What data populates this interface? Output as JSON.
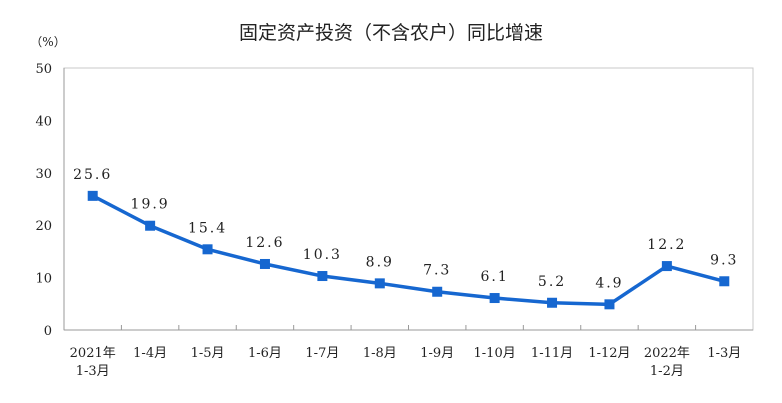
{
  "chart_data": {
    "type": "line",
    "title": "固定资产投资（不含农户）同比增速",
    "ylabel": "（%）",
    "xlabel": "",
    "categories": [
      [
        "2021年",
        "1-3月"
      ],
      [
        "1-4月"
      ],
      [
        "1-5月"
      ],
      [
        "1-6月"
      ],
      [
        "1-7月"
      ],
      [
        "1-8月"
      ],
      [
        "1-9月"
      ],
      [
        "1-10月"
      ],
      [
        "1-11月"
      ],
      [
        "1-12月"
      ],
      [
        "2022年",
        "1-2月"
      ],
      [
        "1-3月"
      ]
    ],
    "values": [
      25.6,
      19.9,
      15.4,
      12.6,
      10.3,
      8.9,
      7.3,
      6.1,
      5.2,
      4.9,
      12.2,
      9.3
    ],
    "data_labels": [
      "25.6",
      "19.9",
      "15.4",
      "12.6",
      "10.3",
      "8.9",
      "7.3",
      "6.1",
      "5.2",
      "4.9",
      "12.2",
      "9.3"
    ],
    "ylim": [
      0,
      50
    ],
    "yticks": [
      0,
      10,
      20,
      30,
      40,
      50
    ],
    "grid": false,
    "legend": "none",
    "line_color": "#1667d0",
    "marker": "square"
  }
}
